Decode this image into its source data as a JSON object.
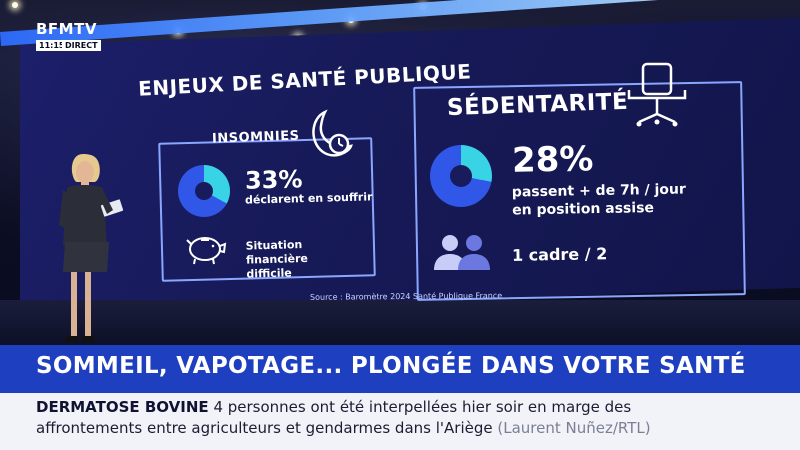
{
  "channel": {
    "logo": "BFMTV",
    "time": "11:15",
    "live_label": "DIRECT"
  },
  "infographic": {
    "main_title": "ENJEUX DE SANTÉ PUBLIQUE",
    "insomnies": {
      "title": "INSOMNIES",
      "percent": "33%",
      "percent_value": 33,
      "description": "déclarent en souffrir",
      "financial_label_line1": "Situation financière",
      "financial_label_line2": "difficile"
    },
    "sedentarite": {
      "title": "SÉDENTARITÉ",
      "percent": "28%",
      "percent_value": 28,
      "description_line1": "passent + de 7h / jour",
      "description_line2": "en position assise",
      "cadre": "1 cadre / 2"
    },
    "source": "Source : Baromètre 2024 Santé Publique France",
    "colors": {
      "pie_highlight": "#39d3e6",
      "pie_base": "#3157e8",
      "panel_border": "#8aa6ff"
    }
  },
  "banner": {
    "headline": "SOMMEIL, VAPOTAGE... PLONGÉE DANS VOTRE SANTÉ",
    "color": "#1e3fbf"
  },
  "ticker": {
    "tag": "DERMATOSE BOVINE",
    "line1_text": "4 personnes ont été interpellées hier soir en marge des",
    "line2_text": "affrontements entre agriculteurs et gendarmes dans l'Ariège",
    "credit": "(Laurent Nuñez/RTL)"
  }
}
